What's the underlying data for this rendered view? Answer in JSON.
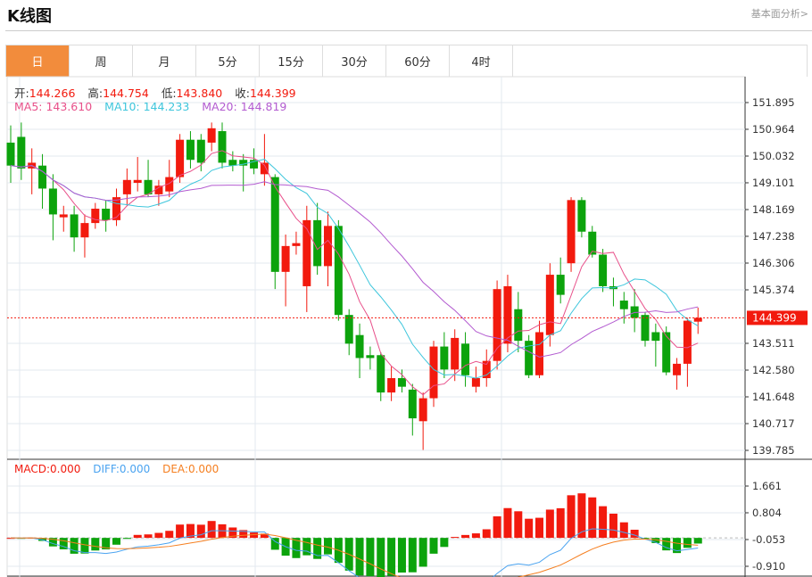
{
  "header": {
    "title": "K线图",
    "link": "基本面分析>"
  },
  "tabs": [
    {
      "label": "日",
      "active": true
    },
    {
      "label": "周"
    },
    {
      "label": "月"
    },
    {
      "label": "5分"
    },
    {
      "label": "15分"
    },
    {
      "label": "30分"
    },
    {
      "label": "60分"
    },
    {
      "label": "4时"
    }
  ],
  "ohlc": {
    "open_label": "开:",
    "open": "144.266",
    "high_label": "高:",
    "high": "144.754",
    "low_label": "低:",
    "low": "143.840",
    "close_label": "收:",
    "close": "144.399"
  },
  "ma": {
    "ma5": "MA5: 143.610",
    "ma10": "MA10: 144.233",
    "ma20": "MA20: 144.819"
  },
  "macd": {
    "macd": "MACD:0.000",
    "diff": "DIFF:0.000",
    "dea": "DEA:0.000"
  },
  "colors": {
    "up": "#f21a0e",
    "down": "#0ca30c",
    "ma5": "#e8508a",
    "ma10": "#3ec6dc",
    "ma20": "#b35bd0",
    "diff": "#4aa3f0",
    "dea": "#f57f20",
    "accent": "#f28c3c"
  },
  "chart_data": [
    {
      "type": "candlestick",
      "title": "K线图",
      "ylim": [
        139.785,
        151.895
      ],
      "y_ticks": [
        "151.895",
        "150.964",
        "150.032",
        "149.101",
        "148.169",
        "147.238",
        "146.306",
        "145.374",
        "143.511",
        "142.580",
        "141.648",
        "140.717",
        "139.785"
      ],
      "last_price": "144.399",
      "candles": [
        [
          150.5,
          151.1,
          149.1,
          149.7
        ],
        [
          150.7,
          151.2,
          149.2,
          149.6
        ],
        [
          149.6,
          150.3,
          148.7,
          149.8
        ],
        [
          149.7,
          150.1,
          148.2,
          148.9
        ],
        [
          148.9,
          149.4,
          147.1,
          148.0
        ],
        [
          147.9,
          148.3,
          147.4,
          148.0
        ],
        [
          148.0,
          148.3,
          146.7,
          147.2
        ],
        [
          147.2,
          148.0,
          146.5,
          147.7
        ],
        [
          147.7,
          148.4,
          147.5,
          148.2
        ],
        [
          148.2,
          148.5,
          147.4,
          147.8
        ],
        [
          147.8,
          148.9,
          147.6,
          148.6
        ],
        [
          148.7,
          149.6,
          148.3,
          149.2
        ],
        [
          149.1,
          150.0,
          148.8,
          149.2
        ],
        [
          149.2,
          149.9,
          148.6,
          148.7
        ],
        [
          148.7,
          149.2,
          148.3,
          149.0
        ],
        [
          148.8,
          149.9,
          148.6,
          149.3
        ],
        [
          149.3,
          150.8,
          149.1,
          150.6
        ],
        [
          150.6,
          150.9,
          149.6,
          149.9
        ],
        [
          150.6,
          150.8,
          149.5,
          149.8
        ],
        [
          150.5,
          151.2,
          150.2,
          151.0
        ],
        [
          150.9,
          151.2,
          149.6,
          149.8
        ],
        [
          149.9,
          150.2,
          149.5,
          149.7
        ],
        [
          149.9,
          150.1,
          148.8,
          149.7
        ],
        [
          149.9,
          150.3,
          149.4,
          149.6
        ],
        [
          149.4,
          150.8,
          149.0,
          149.8
        ],
        [
          149.3,
          149.4,
          145.4,
          146.0
        ],
        [
          146.0,
          147.3,
          144.8,
          146.9
        ],
        [
          146.9,
          147.4,
          146.6,
          147.0
        ],
        [
          145.5,
          148.3,
          144.6,
          147.8
        ],
        [
          147.8,
          148.4,
          145.9,
          146.2
        ],
        [
          146.2,
          148.1,
          145.5,
          147.6
        ],
        [
          147.6,
          147.8,
          144.3,
          144.5
        ],
        [
          144.5,
          144.7,
          143.1,
          143.5
        ],
        [
          143.8,
          144.2,
          142.3,
          143.0
        ],
        [
          143.1,
          143.4,
          142.6,
          143.0
        ],
        [
          143.1,
          143.2,
          141.5,
          141.8
        ],
        [
          141.8,
          142.7,
          141.5,
          142.3
        ],
        [
          142.3,
          142.6,
          141.8,
          142.0
        ],
        [
          141.9,
          142.1,
          140.3,
          140.9
        ],
        [
          140.8,
          141.8,
          139.8,
          141.6
        ],
        [
          141.6,
          143.6,
          141.3,
          143.4
        ],
        [
          143.4,
          143.9,
          142.3,
          142.6
        ],
        [
          142.6,
          144.0,
          142.2,
          143.7
        ],
        [
          143.5,
          143.9,
          142.0,
          142.4
        ],
        [
          142.0,
          142.7,
          141.8,
          142.3
        ],
        [
          142.3,
          143.3,
          142.0,
          142.9
        ],
        [
          142.9,
          145.7,
          142.6,
          145.4
        ],
        [
          143.5,
          145.9,
          143.2,
          145.5
        ],
        [
          144.7,
          145.3,
          143.2,
          143.6
        ],
        [
          143.6,
          143.8,
          142.3,
          142.4
        ],
        [
          142.4,
          144.3,
          142.3,
          143.9
        ],
        [
          143.8,
          146.3,
          143.4,
          145.9
        ],
        [
          145.9,
          146.5,
          144.9,
          145.2
        ],
        [
          146.3,
          148.6,
          146.0,
          148.5
        ],
        [
          148.5,
          148.6,
          147.2,
          147.4
        ],
        [
          147.4,
          147.6,
          146.5,
          146.6
        ],
        [
          146.6,
          146.8,
          145.3,
          145.5
        ],
        [
          145.5,
          145.8,
          144.8,
          145.4
        ],
        [
          145.0,
          145.3,
          144.2,
          144.7
        ],
        [
          144.8,
          145.4,
          143.9,
          144.4
        ],
        [
          144.5,
          144.6,
          143.4,
          143.6
        ],
        [
          143.9,
          144.2,
          142.7,
          143.6
        ],
        [
          143.9,
          144.1,
          142.4,
          142.5
        ],
        [
          142.4,
          143.0,
          141.9,
          142.8
        ],
        [
          142.8,
          144.4,
          142.0,
          144.3
        ],
        [
          144.266,
          144.754,
          143.84,
          144.399
        ]
      ]
    },
    {
      "type": "macd",
      "y_ticks": [
        "1.661",
        "0.804",
        "-0.053",
        "-0.910"
      ],
      "ylim": [
        -0.91,
        1.661
      ]
    }
  ]
}
